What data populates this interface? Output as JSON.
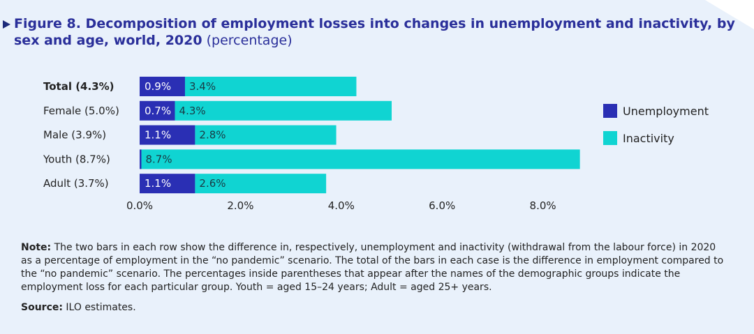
{
  "title": {
    "bold": "Figure 8.  Decomposition of employment losses into changes in unemployment and inactivity, by sex and age, world, 2020",
    "unit": "(percentage)"
  },
  "chart_data": {
    "type": "bar",
    "orientation": "horizontal",
    "stacked": true,
    "categories": [
      "Total (4.3%)",
      "Female (5.0%)",
      "Male (3.9%)",
      "Youth (8.7%)",
      "Adult (3.7%)"
    ],
    "bold_category": "Total (4.3%)",
    "series": [
      {
        "name": "Unemployment",
        "values": [
          0.9,
          0.7,
          1.1,
          0.0,
          1.1
        ],
        "labels": [
          "0.9%",
          "0.7%",
          "1.1%",
          "",
          "1.1%"
        ]
      },
      {
        "name": "Inactivity",
        "values": [
          3.4,
          4.3,
          2.8,
          8.7,
          2.6
        ],
        "labels": [
          "3.4%",
          "4.3%",
          "2.8%",
          "8.7%",
          "2.6%"
        ]
      }
    ],
    "xlim": [
      0,
      8.8
    ],
    "xticks": [
      0,
      2,
      4,
      6,
      8
    ],
    "xtick_labels": [
      "0.0%",
      "2.0%",
      "4.0%",
      "6.0%",
      "8.0%"
    ],
    "legend_position": "right",
    "colors": {
      "Unemployment": "#2a2fb4",
      "Inactivity": "#10d4d2"
    }
  },
  "legend": {
    "items": [
      {
        "label": "Unemployment",
        "color": "#2a2fb4"
      },
      {
        "label": "Inactivity",
        "color": "#10d4d2"
      }
    ]
  },
  "note": {
    "label": "Note:",
    "text": " The two bars in each row show the difference in, respectively, unemployment and inactivity (withdrawal from the labour force) in 2020 as a percentage of employment in the “no pandemic” scenario. The total of the bars in each case is the difference in employment compared to the “no pandemic” scenario. The percentages inside parentheses that appear after the names of the demographic groups indicate the employment loss for each particular group. Youth = aged 15–24 years; Adult = aged 25+ years."
  },
  "source": {
    "label": "Source:",
    "text": " ILO estimates."
  }
}
